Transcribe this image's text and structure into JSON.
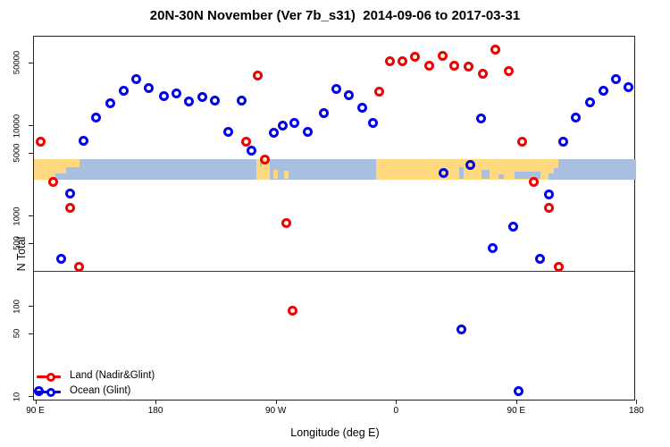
{
  "title": "20N-30N November (Ver 7b_s31)  2014-09-06 to 2017-03-31",
  "axes": {
    "x_label": "Longitude (deg E)",
    "y_label": "N Total"
  },
  "legend": {
    "items": [
      {
        "id": "land",
        "label": "Land (Nadir&Glint)",
        "color": "#f10000"
      },
      {
        "id": "ocean",
        "label": "Ocean (Glint)",
        "color": "#0000f0"
      }
    ]
  },
  "colors": {
    "land_series": "#f10000",
    "ocean_series": "#0000f0",
    "map_land": "#fed97f",
    "map_ocean": "#a9bfdf",
    "axis": "#222222",
    "reference_line": "#3a3a3a"
  },
  "chart_data": {
    "type": "scatter",
    "title": "20N-30N November (Ver 7b_s31)  2014-09-06 to 2017-03-31",
    "xlabel": "Longitude (deg E)",
    "ylabel": "N Total",
    "x_axis": {
      "scale": "linear",
      "range": [
        89,
        540
      ],
      "note": "longitude in deg E, continues past 360 (90E-180E shown twice)",
      "ticks": [
        {
          "v": 90,
          "label": "90 E"
        },
        {
          "v": 180,
          "label": "180"
        },
        {
          "v": 270,
          "label": "90 W"
        },
        {
          "v": 360,
          "label": "0"
        },
        {
          "v": 450,
          "label": "90 E"
        },
        {
          "v": 540,
          "label": "180"
        }
      ]
    },
    "y_axis": {
      "scale": "log",
      "range": [
        10,
        100000
      ],
      "ticks": [
        {
          "v": 50000,
          "label": "50000"
        },
        {
          "v": 10000,
          "label": "10000"
        },
        {
          "v": 5000,
          "label": "5000"
        },
        {
          "v": 1000,
          "label": "1000"
        },
        {
          "v": 500,
          "label": "500"
        },
        {
          "v": 100,
          "label": "100"
        },
        {
          "v": 50,
          "label": "50"
        },
        {
          "v": 10,
          "label": "10"
        }
      ]
    },
    "reference_line": {
      "y": 250
    },
    "map_band": {
      "description": "land/ocean strip for 20N-30N drawn across the plot",
      "y_top": 4370,
      "y_bottom": 2560,
      "segments": [
        {
          "type": "ocean",
          "from": 89,
          "to": 540
        },
        {
          "type": "land",
          "from": 89,
          "to": 105
        },
        {
          "type": "land",
          "from": 105,
          "to": 113,
          "top": 0,
          "h": 0.7
        },
        {
          "type": "land",
          "from": 113,
          "to": 123,
          "top": 0,
          "h": 0.42
        },
        {
          "type": "land",
          "from": 255.5,
          "to": 265.5
        },
        {
          "type": "ocean",
          "from": 258,
          "to": 259.5,
          "top": 0,
          "h": 0.35
        },
        {
          "type": "land",
          "from": 268.5,
          "to": 271.5,
          "top": 0.55,
          "h": 0.45
        },
        {
          "type": "land",
          "from": 276,
          "to": 279.5,
          "top": 0.6,
          "h": 0.4
        },
        {
          "type": "land",
          "from": 345,
          "to": 474
        },
        {
          "type": "land",
          "from": 474,
          "to": 478,
          "top": 0,
          "h": 0.7
        },
        {
          "type": "land",
          "from": 478,
          "to": 481.5,
          "top": 0,
          "h": 0.45
        },
        {
          "type": "ocean",
          "from": 407,
          "to": 411,
          "top": 0.4,
          "h": 0.6
        },
        {
          "type": "ocean",
          "from": 424,
          "to": 430,
          "top": 0.55,
          "h": 0.45
        },
        {
          "type": "ocean",
          "from": 437,
          "to": 441,
          "top": 0.78,
          "h": 0.22
        },
        {
          "type": "ocean",
          "from": 449,
          "to": 468,
          "top": 0.62,
          "h": 0.38
        }
      ]
    },
    "series": [
      {
        "name": "Land (Nadir&Glint)",
        "color": "#f10000",
        "points": [
          [
            94.3,
            6700
          ],
          [
            103.7,
            2400
          ],
          [
            115.8,
            1230
          ],
          [
            122.5,
            275
          ],
          [
            247.6,
            6700
          ],
          [
            256.3,
            36000
          ],
          [
            261.6,
            4200
          ],
          [
            277.7,
            830
          ],
          [
            282.4,
            89
          ],
          [
            347.3,
            24000
          ],
          [
            355.4,
            52000
          ],
          [
            364.7,
            52000
          ],
          [
            374.1,
            58000
          ],
          [
            384.8,
            46000
          ],
          [
            394.8,
            60000
          ],
          [
            403.5,
            46000
          ],
          [
            414.2,
            45000
          ],
          [
            424.9,
            37500
          ],
          [
            434.3,
            70000
          ],
          [
            444.3,
            40000
          ],
          [
            454.4,
            6700
          ],
          [
            463.1,
            2400
          ],
          [
            474.4,
            1230
          ],
          [
            481.8,
            275
          ]
        ]
      },
      {
        "name": "Ocean (Glint)",
        "color": "#0000f0",
        "points": [
          [
            93.0,
            11.5
          ],
          [
            109.1,
            340
          ],
          [
            115.8,
            1760
          ],
          [
            125.8,
            6800
          ],
          [
            135.2,
            12200
          ],
          [
            146.5,
            17600
          ],
          [
            155.9,
            24200
          ],
          [
            165.3,
            32600
          ],
          [
            174.6,
            26000
          ],
          [
            186.0,
            21200
          ],
          [
            195.4,
            22600
          ],
          [
            204.8,
            18500
          ],
          [
            214.8,
            20800
          ],
          [
            224.2,
            18900
          ],
          [
            234.2,
            8500
          ],
          [
            244.3,
            18900
          ],
          [
            251.6,
            5300
          ],
          [
            268.4,
            8300
          ],
          [
            275.0,
            10000
          ],
          [
            283.7,
            10700
          ],
          [
            293.8,
            8500
          ],
          [
            305.8,
            13700
          ],
          [
            315.2,
            25400
          ],
          [
            324.6,
            21700
          ],
          [
            334.6,
            15700
          ],
          [
            342.6,
            10700
          ],
          [
            395.5,
            2970
          ],
          [
            408.9,
            55
          ],
          [
            415.5,
            3650
          ],
          [
            423.6,
            12000
          ],
          [
            432.3,
            440
          ],
          [
            447.7,
            760
          ],
          [
            451.7,
            11.5
          ],
          [
            467.8,
            340
          ],
          [
            474.4,
            1730
          ],
          [
            485.1,
            6700
          ],
          [
            494.5,
            12200
          ],
          [
            505.2,
            18200
          ],
          [
            515.2,
            24200
          ],
          [
            524.6,
            32600
          ],
          [
            534.0,
            26500
          ]
        ]
      }
    ],
    "legend_position": "bottom-left"
  }
}
